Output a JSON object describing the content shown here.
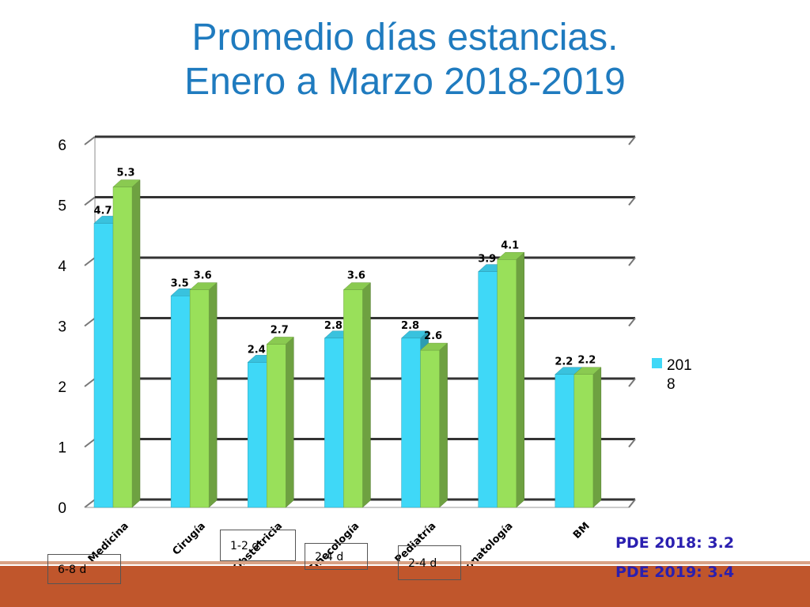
{
  "title": {
    "line1": "Promedio días estancias.",
    "line2": "Enero a Marzo 2018-2019"
  },
  "colors": {
    "title": "#1f7bbf",
    "series_2018": "#3fd8f7",
    "series_2019": "#99e05a",
    "footer": "#c0562c",
    "pde_text": "#2a1fb0"
  },
  "chart_data": {
    "type": "bar",
    "categories": [
      "Medicina",
      "Cirugía",
      "Obstetricia",
      "Ginecología",
      "Pediatría",
      "Neonatología",
      "BM"
    ],
    "series": [
      {
        "name": "2018",
        "values": [
          4.7,
          3.5,
          2.4,
          2.8,
          2.8,
          3.9,
          2.2
        ]
      },
      {
        "values": [
          5.3,
          3.6,
          2.7,
          3.6,
          2.6,
          4.1,
          2.2
        ]
      }
    ],
    "data_labels": [
      [
        "4.7",
        "3.5",
        "2.4",
        "2.8",
        "2.8",
        "3.9",
        "2.2"
      ],
      [
        "5.3",
        "3.6",
        "2.7",
        "3.6",
        "2.6",
        "4.1",
        "2.2"
      ]
    ],
    "yticks": [
      "0",
      "1",
      "2",
      "3",
      "4",
      "5",
      "6"
    ],
    "ylim": [
      0,
      6
    ],
    "grid": true,
    "legend": {
      "placement": "right",
      "label_line1": "201",
      "label_line2": "8"
    },
    "style": "3d-clustered-columns"
  },
  "pde": {
    "line1": "PDE 2018: 3.2",
    "line2": "PDE 2019: 3.4"
  },
  "range_boxes": [
    "6-8 d",
    "1-2 d",
    "2-4 d",
    "2-4 d"
  ]
}
